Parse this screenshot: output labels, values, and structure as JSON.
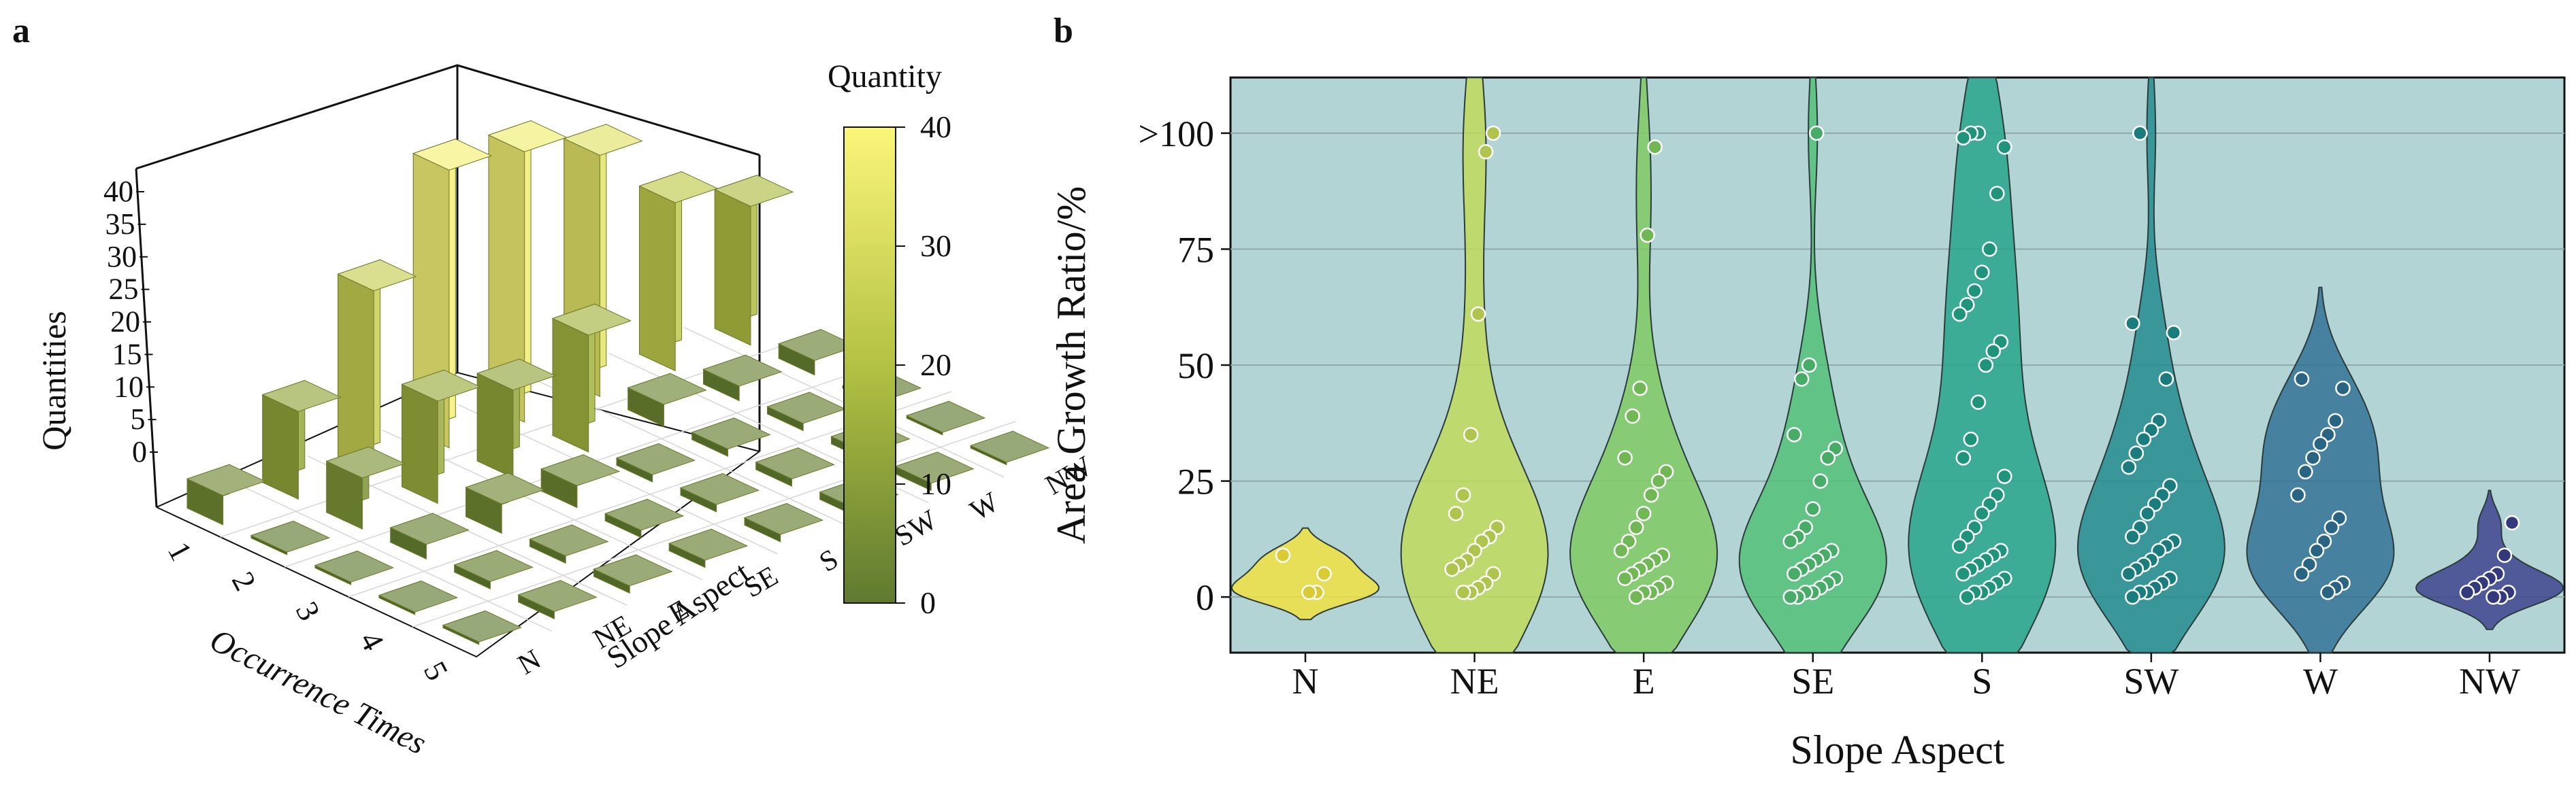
{
  "panel_a": {
    "letter": "a",
    "chart_data": {
      "type": "bar3d",
      "title": "",
      "x_label": "Occurrence Times",
      "y_label": "Slope Aspect",
      "z_label": "Quantities",
      "x_categories": [
        "1",
        "2",
        "3",
        "4",
        "5"
      ],
      "y_categories": [
        "N",
        "NE",
        "E",
        "SE",
        "S",
        "SW",
        "W",
        "NW"
      ],
      "z_ticks": [
        "0",
        "5",
        "10",
        "15",
        "20",
        "25",
        "30",
        "35",
        "40"
      ],
      "zlim": [
        0,
        40
      ],
      "values": [
        [
          4,
          12,
          25,
          38,
          37,
          33,
          23,
          19
        ],
        [
          0,
          7,
          14,
          12,
          16,
          3,
          2,
          2
        ],
        [
          0,
          2,
          4,
          3,
          1,
          1,
          1,
          0
        ],
        [
          0,
          1,
          1,
          1,
          1,
          1,
          1,
          0
        ],
        [
          0,
          1,
          1,
          1,
          1,
          1,
          1,
          0
        ]
      ],
      "colorbar": {
        "title": "Quantity",
        "ticks": [
          "0",
          "10",
          "20",
          "30",
          "40"
        ],
        "range": [
          0,
          40
        ],
        "colors": {
          "low": "#5f7a2f",
          "mid": "#b3c143",
          "high": "#fbf67a"
        }
      }
    }
  },
  "panel_b": {
    "letter": "b",
    "chart_data": {
      "type": "violin",
      "xlabel": "Slope Aspect",
      "ylabel": "Area Growth Ratio/%",
      "categories": [
        "N",
        "NE",
        "E",
        "SE",
        "S",
        "SW",
        "W",
        "NW"
      ],
      "y_ticks": [
        {
          "value": 0,
          "label": "0"
        },
        {
          "value": 25,
          "label": "25"
        },
        {
          "value": 50,
          "label": "50"
        },
        {
          "value": 75,
          "label": "75"
        },
        {
          "value": 100,
          "label": ">100"
        }
      ],
      "ylim": [
        -12,
        112
      ],
      "grid": true,
      "colors": {
        "background": "#b2d4d5",
        "N": "#f2e23b",
        "NE": "#c1da56",
        "E": "#7ecb5f",
        "SE": "#4fbf73",
        "S": "#23a389",
        "SW": "#1e8a8c",
        "W": "#2e6f92",
        "NW": "#3a3f8a"
      },
      "series": [
        {
          "name": "N",
          "points": [
            9,
            5,
            1,
            1
          ]
        },
        {
          "name": "NE",
          "points": [
            100,
            96,
            61,
            35,
            22,
            18,
            15,
            13,
            12,
            10,
            8,
            7,
            6,
            5,
            3,
            2,
            1,
            1
          ]
        },
        {
          "name": "E",
          "points": [
            97,
            78,
            45,
            39,
            30,
            27,
            25,
            22,
            18,
            15,
            12,
            10,
            9,
            8,
            7,
            6,
            5,
            4,
            3,
            2,
            1,
            1,
            0
          ]
        },
        {
          "name": "SE",
          "points": [
            100,
            50,
            47,
            35,
            32,
            30,
            25,
            19,
            15,
            13,
            12,
            10,
            9,
            8,
            7,
            6,
            5,
            4,
            3,
            2,
            1,
            1,
            0,
            0
          ]
        },
        {
          "name": "S",
          "points": [
            100,
            100,
            99,
            97,
            87,
            75,
            70,
            66,
            63,
            61,
            55,
            53,
            50,
            42,
            34,
            30,
            26,
            22,
            20,
            18,
            15,
            13,
            11,
            10,
            9,
            8,
            7,
            6,
            5,
            4,
            3,
            2,
            1,
            1,
            0
          ]
        },
        {
          "name": "SW",
          "points": [
            100,
            59,
            57,
            47,
            38,
            36,
            34,
            31,
            28,
            24,
            22,
            20,
            18,
            15,
            13,
            12,
            11,
            10,
            8,
            7,
            6,
            5,
            4,
            3,
            2,
            1,
            1,
            0
          ]
        },
        {
          "name": "W",
          "points": [
            47,
            45,
            38,
            35,
            33,
            30,
            27,
            22,
            17,
            15,
            12,
            10,
            7,
            5,
            3,
            2,
            1
          ]
        },
        {
          "name": "NW",
          "points": [
            16,
            9,
            5,
            4,
            3,
            2,
            1,
            1,
            0,
            0
          ]
        }
      ]
    }
  }
}
